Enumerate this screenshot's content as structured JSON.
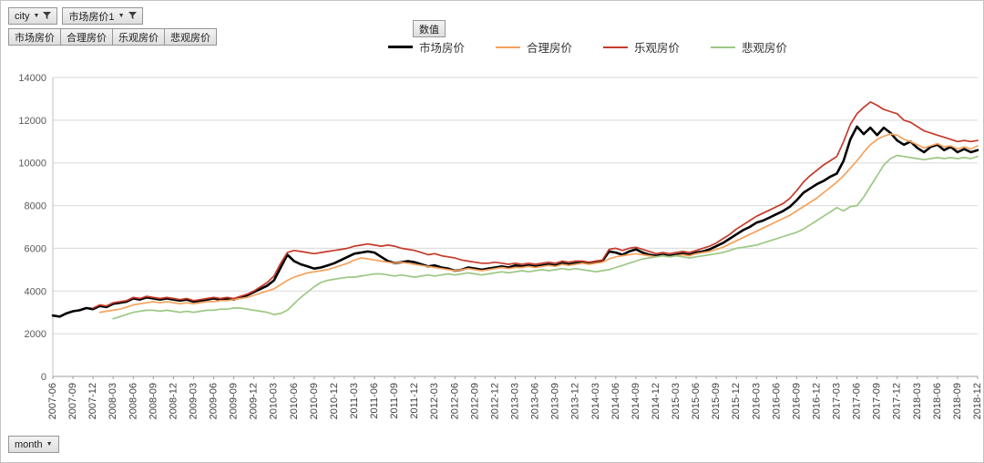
{
  "pivot": {
    "filter_buttons": [
      {
        "label": "city"
      },
      {
        "label": "市场房价1"
      }
    ],
    "field_buttons": [
      "市场房价",
      "合理房价",
      "乐观房价",
      "悲观房价"
    ],
    "values_button": "数值",
    "axis_button": "month"
  },
  "chart_data": {
    "type": "line",
    "title": "",
    "xlabel": "",
    "ylabel": "",
    "x_start": "2007-06",
    "x_interval_months": 1,
    "x_tick_every": 3,
    "x_tick_labels": [
      "2007-06",
      "2007-09",
      "2007-12",
      "2008-03",
      "2008-06",
      "2008-09",
      "2008-12",
      "2009-03",
      "2009-06",
      "2009-09",
      "2009-12",
      "2010-03",
      "2010-06",
      "2010-09",
      "2010-12",
      "2011-03",
      "2011-06",
      "2011-09",
      "2011-12",
      "2012-03",
      "2012-06",
      "2012-09",
      "2012-12",
      "2013-03",
      "2013-06",
      "2013-09",
      "2013-12",
      "2014-03",
      "2014-06",
      "2014-09",
      "2014-12",
      "2015-03",
      "2015-06",
      "2015-09",
      "2015-12",
      "2016-03",
      "2016-06",
      "2016-09",
      "2016-12",
      "2017-03",
      "2017-06",
      "2017-09",
      "2017-12",
      "2018-03",
      "2018-06",
      "2018-09",
      "2018-12"
    ],
    "ylim": [
      0,
      14000
    ],
    "y_ticks": [
      0,
      2000,
      4000,
      6000,
      8000,
      10000,
      12000,
      14000
    ],
    "grid": true,
    "legend_position": "top",
    "series": [
      {
        "name": "市场房价",
        "color": "#000000",
        "width": 2.6,
        "values": [
          2850,
          2800,
          2950,
          3050,
          3100,
          3200,
          3150,
          3300,
          3250,
          3400,
          3450,
          3500,
          3650,
          3600,
          3700,
          3650,
          3600,
          3650,
          3600,
          3550,
          3600,
          3500,
          3550,
          3600,
          3650,
          3600,
          3650,
          3600,
          3700,
          3800,
          3950,
          4100,
          4250,
          4500,
          5100,
          5700,
          5400,
          5250,
          5150,
          5050,
          5100,
          5200,
          5300,
          5450,
          5600,
          5750,
          5800,
          5850,
          5800,
          5600,
          5400,
          5300,
          5350,
          5400,
          5350,
          5250,
          5150,
          5200,
          5100,
          5050,
          4950,
          5000,
          5100,
          5050,
          5000,
          5050,
          5100,
          5150,
          5100,
          5200,
          5150,
          5200,
          5150,
          5200,
          5250,
          5200,
          5300,
          5250,
          5300,
          5350,
          5300,
          5350,
          5400,
          5850,
          5800,
          5700,
          5850,
          5950,
          5800,
          5700,
          5650,
          5700,
          5650,
          5700,
          5750,
          5700,
          5800,
          5850,
          5950,
          6100,
          6250,
          6450,
          6650,
          6850,
          7000,
          7200,
          7300,
          7450,
          7600,
          7750,
          7950,
          8250,
          8600,
          8800,
          9000,
          9150,
          9350,
          9500,
          10100,
          11100,
          11700,
          11350,
          11650,
          11300,
          11650,
          11400,
          11050,
          10850,
          11000,
          10700,
          10500,
          10750,
          10850,
          10600,
          10750,
          10500,
          10650,
          10500,
          10600
        ]
      },
      {
        "name": "合理房价",
        "color": "#F5A25D",
        "width": 1.7,
        "values": [
          null,
          null,
          null,
          null,
          null,
          null,
          null,
          3000,
          3050,
          3100,
          3150,
          3250,
          3350,
          3400,
          3450,
          3500,
          3450,
          3500,
          3450,
          3400,
          3450,
          3400,
          3450,
          3500,
          3500,
          3550,
          3550,
          3600,
          3650,
          3700,
          3800,
          3900,
          4000,
          4100,
          4300,
          4500,
          4650,
          4750,
          4850,
          4900,
          4950,
          5000,
          5100,
          5200,
          5300,
          5450,
          5550,
          5500,
          5450,
          5400,
          5350,
          5300,
          5350,
          5300,
          5250,
          5200,
          5150,
          5100,
          5050,
          5000,
          4950,
          5000,
          5050,
          5000,
          4950,
          5000,
          5050,
          5100,
          5050,
          5100,
          5100,
          5150,
          5100,
          5150,
          5200,
          5150,
          5250,
          5200,
          5250,
          5300,
          5250,
          5300,
          5350,
          5500,
          5600,
          5650,
          5700,
          5750,
          5700,
          5650,
          5600,
          5650,
          5600,
          5650,
          5700,
          5650,
          5750,
          5800,
          5850,
          5950,
          6050,
          6200,
          6350,
          6500,
          6650,
          6800,
          6950,
          7100,
          7250,
          7400,
          7550,
          7750,
          7950,
          8150,
          8350,
          8600,
          8850,
          9100,
          9400,
          9750,
          10100,
          10500,
          10850,
          11100,
          11250,
          11350,
          11300,
          11100,
          11000,
          10850,
          10700,
          10800,
          10900,
          10750,
          10800,
          10650,
          10750,
          10650,
          10800
        ]
      },
      {
        "name": "乐观房价",
        "color": "#C43B2B",
        "width": 1.7,
        "values": [
          null,
          null,
          null,
          null,
          null,
          null,
          3200,
          3350,
          3300,
          3450,
          3500,
          3550,
          3700,
          3650,
          3750,
          3700,
          3650,
          3700,
          3650,
          3600,
          3650,
          3550,
          3600,
          3650,
          3700,
          3650,
          3700,
          3650,
          3750,
          3850,
          4000,
          4200,
          4400,
          4700,
          5300,
          5800,
          5900,
          5850,
          5800,
          5750,
          5800,
          5850,
          5900,
          5950,
          6000,
          6100,
          6150,
          6200,
          6150,
          6100,
          6150,
          6100,
          6000,
          5950,
          5900,
          5800,
          5700,
          5750,
          5650,
          5600,
          5550,
          5450,
          5400,
          5350,
          5300,
          5300,
          5350,
          5300,
          5250,
          5300,
          5250,
          5300,
          5250,
          5300,
          5350,
          5300,
          5400,
          5350,
          5400,
          5400,
          5350,
          5400,
          5450,
          5950,
          6000,
          5900,
          6000,
          6050,
          5950,
          5850,
          5750,
          5800,
          5750,
          5800,
          5850,
          5800,
          5900,
          6000,
          6100,
          6250,
          6450,
          6650,
          6900,
          7100,
          7300,
          7500,
          7650,
          7800,
          7950,
          8100,
          8350,
          8700,
          9100,
          9400,
          9650,
          9900,
          10100,
          10300,
          11000,
          11800,
          12300,
          12600,
          12850,
          12700,
          12500,
          12400,
          12300,
          12000,
          11900,
          11700,
          11500,
          11400,
          11300,
          11200,
          11100,
          11000,
          11050,
          11000,
          11050
        ]
      },
      {
        "name": "悲观房价",
        "color": "#9DC885",
        "width": 1.7,
        "values": [
          null,
          null,
          null,
          null,
          null,
          null,
          null,
          null,
          null,
          2700,
          2800,
          2900,
          3000,
          3050,
          3100,
          3100,
          3050,
          3100,
          3050,
          3000,
          3050,
          3000,
          3050,
          3100,
          3100,
          3150,
          3150,
          3200,
          3200,
          3150,
          3100,
          3050,
          3000,
          2900,
          2950,
          3100,
          3400,
          3700,
          3950,
          4200,
          4400,
          4500,
          4550,
          4600,
          4650,
          4650,
          4700,
          4750,
          4800,
          4800,
          4750,
          4700,
          4750,
          4700,
          4650,
          4700,
          4750,
          4700,
          4750,
          4800,
          4750,
          4800,
          4850,
          4800,
          4750,
          4800,
          4850,
          4900,
          4850,
          4900,
          4950,
          4900,
          4950,
          5000,
          4950,
          5000,
          5050,
          5000,
          5050,
          5000,
          4950,
          4900,
          4950,
          5000,
          5100,
          5200,
          5300,
          5400,
          5500,
          5550,
          5600,
          5650,
          5600,
          5650,
          5600,
          5550,
          5600,
          5650,
          5700,
          5750,
          5800,
          5900,
          6000,
          6050,
          6100,
          6150,
          6250,
          6350,
          6450,
          6550,
          6650,
          6750,
          6900,
          7100,
          7300,
          7500,
          7700,
          7900,
          7750,
          7950,
          8000,
          8400,
          8900,
          9400,
          9900,
          10200,
          10350,
          10300,
          10250,
          10200,
          10150,
          10200,
          10250,
          10200,
          10250,
          10200,
          10250,
          10200,
          10300
        ]
      }
    ]
  }
}
